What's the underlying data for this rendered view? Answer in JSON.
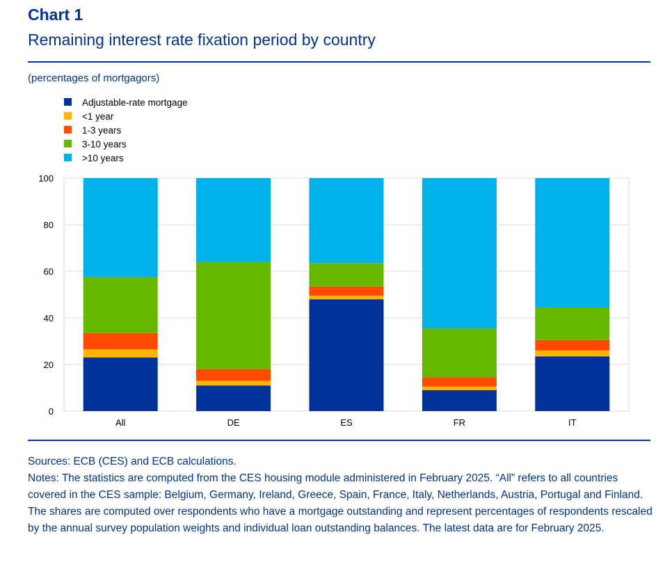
{
  "header": {
    "chart_label": "Chart 1",
    "title": "Remaining interest rate fixation period by country",
    "unit": "(percentages of mortgagors)"
  },
  "footer": {
    "sources": "Sources: ECB (CES) and ECB calculations.",
    "notes": "Notes: The statistics are computed from the CES housing module administered in February 2025. “All” refers to all countries covered in the CES sample: Belgium, Germany, Ireland, Greece, Spain, France, Italy, Netherlands, Austria, Portugal and Finland. The shares are computed over respondents who have a mortgage outstanding and represent percentages of respondents rescaled by the annual survey population weights and individual loan outstanding balances. The latest data are for February 2025."
  },
  "chart_data": {
    "type": "bar",
    "stacked": true,
    "categories": [
      "All",
      "DE",
      "ES",
      "FR",
      "IT"
    ],
    "series": [
      {
        "name": "Adjustable-rate mortgage",
        "color": "#003299",
        "values": [
          23,
          11,
          48,
          9,
          23.5
        ]
      },
      {
        "name": "<1 year",
        "color": "#FFB400",
        "values": [
          3.5,
          2,
          1.5,
          1.5,
          2.5
        ]
      },
      {
        "name": "1-3 years",
        "color": "#FF4B00",
        "values": [
          7,
          5,
          4,
          4,
          4.5
        ]
      },
      {
        "name": "3-10 years",
        "color": "#65B800",
        "values": [
          24,
          46,
          10,
          21,
          14
        ]
      },
      {
        "name": ">10 years",
        "color": "#00B1EA",
        "values": [
          42.5,
          36,
          36.5,
          64.5,
          55.5
        ]
      }
    ],
    "yticks": [
      0,
      20,
      40,
      60,
      80,
      100
    ],
    "ylim": [
      0,
      100
    ],
    "grid": true,
    "legend_position": "top-left"
  }
}
